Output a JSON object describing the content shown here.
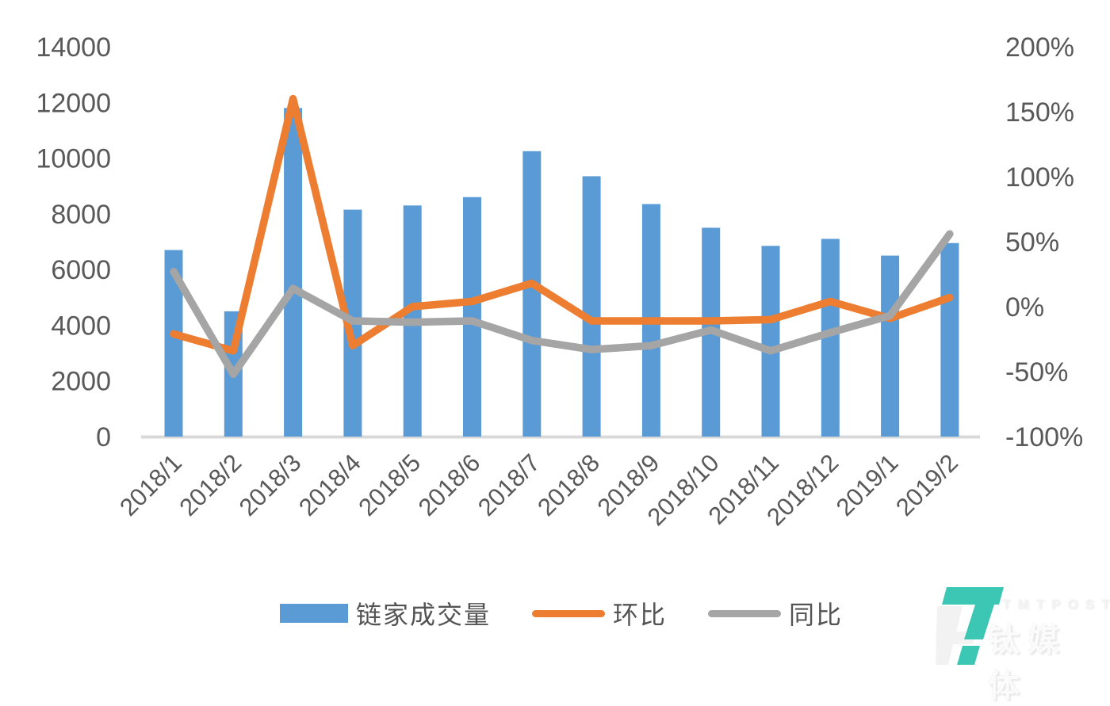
{
  "chart_data": {
    "type": "bar",
    "title": "",
    "categories": [
      "2018/1",
      "2018/2",
      "2018/3",
      "2018/4",
      "2018/5",
      "2018/6",
      "2018/7",
      "2018/8",
      "2018/9",
      "2018/10",
      "2018/11",
      "2018/12",
      "2019/1",
      "2019/2"
    ],
    "series": [
      {
        "name": "链家成交量",
        "kind": "bar",
        "axis": "left",
        "color": "#5B9BD5",
        "values": [
          6700,
          4500,
          11800,
          8150,
          8300,
          8600,
          10250,
          9350,
          8350,
          7500,
          6850,
          7100,
          6500,
          6950
        ]
      },
      {
        "name": "环比",
        "kind": "line",
        "axis": "right",
        "unit": "%",
        "color": "#ED7D31",
        "values": [
          -21,
          -34,
          160,
          -30,
          0,
          4,
          18,
          -11,
          -11,
          -11,
          -10,
          4,
          -9,
          7
        ]
      },
      {
        "name": "同比",
        "kind": "line",
        "axis": "right",
        "unit": "%",
        "color": "#A5A5A5",
        "values": [
          27,
          -52,
          14,
          -11,
          -12,
          -11,
          -26,
          -33,
          -30,
          -18,
          -34,
          -20,
          -7,
          56
        ]
      }
    ],
    "left_axis": {
      "min": 0,
      "max": 14000,
      "step": 2000,
      "tick_labels": [
        "0",
        "2000",
        "4000",
        "6000",
        "8000",
        "10000",
        "12000",
        "14000"
      ]
    },
    "right_axis": {
      "min": -100,
      "max": 200,
      "step": 50,
      "tick_labels": [
        "-100%",
        "-50%",
        "0%",
        "50%",
        "100%",
        "150%",
        "200%"
      ]
    },
    "legend_position": "bottom",
    "grid": false
  },
  "colors": {
    "axis_text": "#595959",
    "axis_line": "#D9D9D9",
    "legend_text": "#545454",
    "watermark_teal": "#3CC7B4",
    "watermark_ghost": "#f2f2f2"
  },
  "watermark": {
    "brand": "TMTPOST",
    "brand_cn": "钛媒体"
  }
}
